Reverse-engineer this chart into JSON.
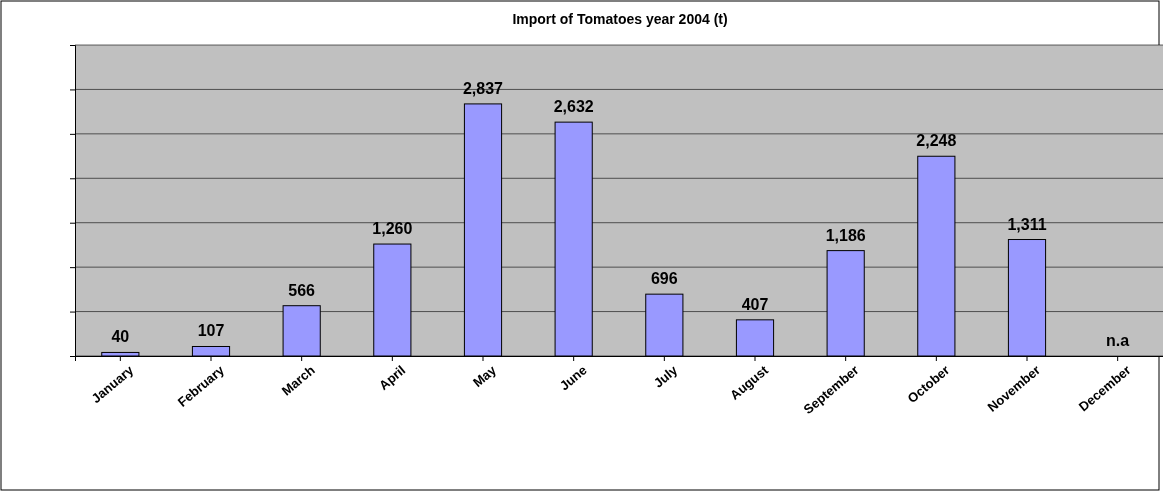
{
  "chart_data": {
    "type": "bar",
    "title": "Import of Tomatoes year 2004 (t)",
    "categories": [
      "January",
      "February",
      "March",
      "April",
      "May",
      "June",
      "July",
      "August",
      "September",
      "October",
      "November",
      "December"
    ],
    "values": [
      40,
      107,
      566,
      1260,
      2837,
      2632,
      696,
      407,
      1186,
      2248,
      1311,
      null
    ],
    "value_labels": [
      "40",
      "107",
      "566",
      "1,260",
      "2,837",
      "2,632",
      "696",
      "407",
      "1,186",
      "2,248",
      "1,311",
      "n.a"
    ],
    "color": "#9999ff",
    "ylim": [
      0,
      3500
    ],
    "yticks": [
      {
        "value": 0,
        "label": null
      },
      {
        "value": 500,
        "label": null
      },
      {
        "value": 1000,
        "label": null
      },
      {
        "value": 1500,
        "label": null
      },
      {
        "value": 2000,
        "label": null
      },
      {
        "value": 2500,
        "label": null
      },
      {
        "value": 3000,
        "label": null
      },
      {
        "value": 3500,
        "label": null
      }
    ],
    "tick_labels": "x",
    "grid": "y"
  }
}
